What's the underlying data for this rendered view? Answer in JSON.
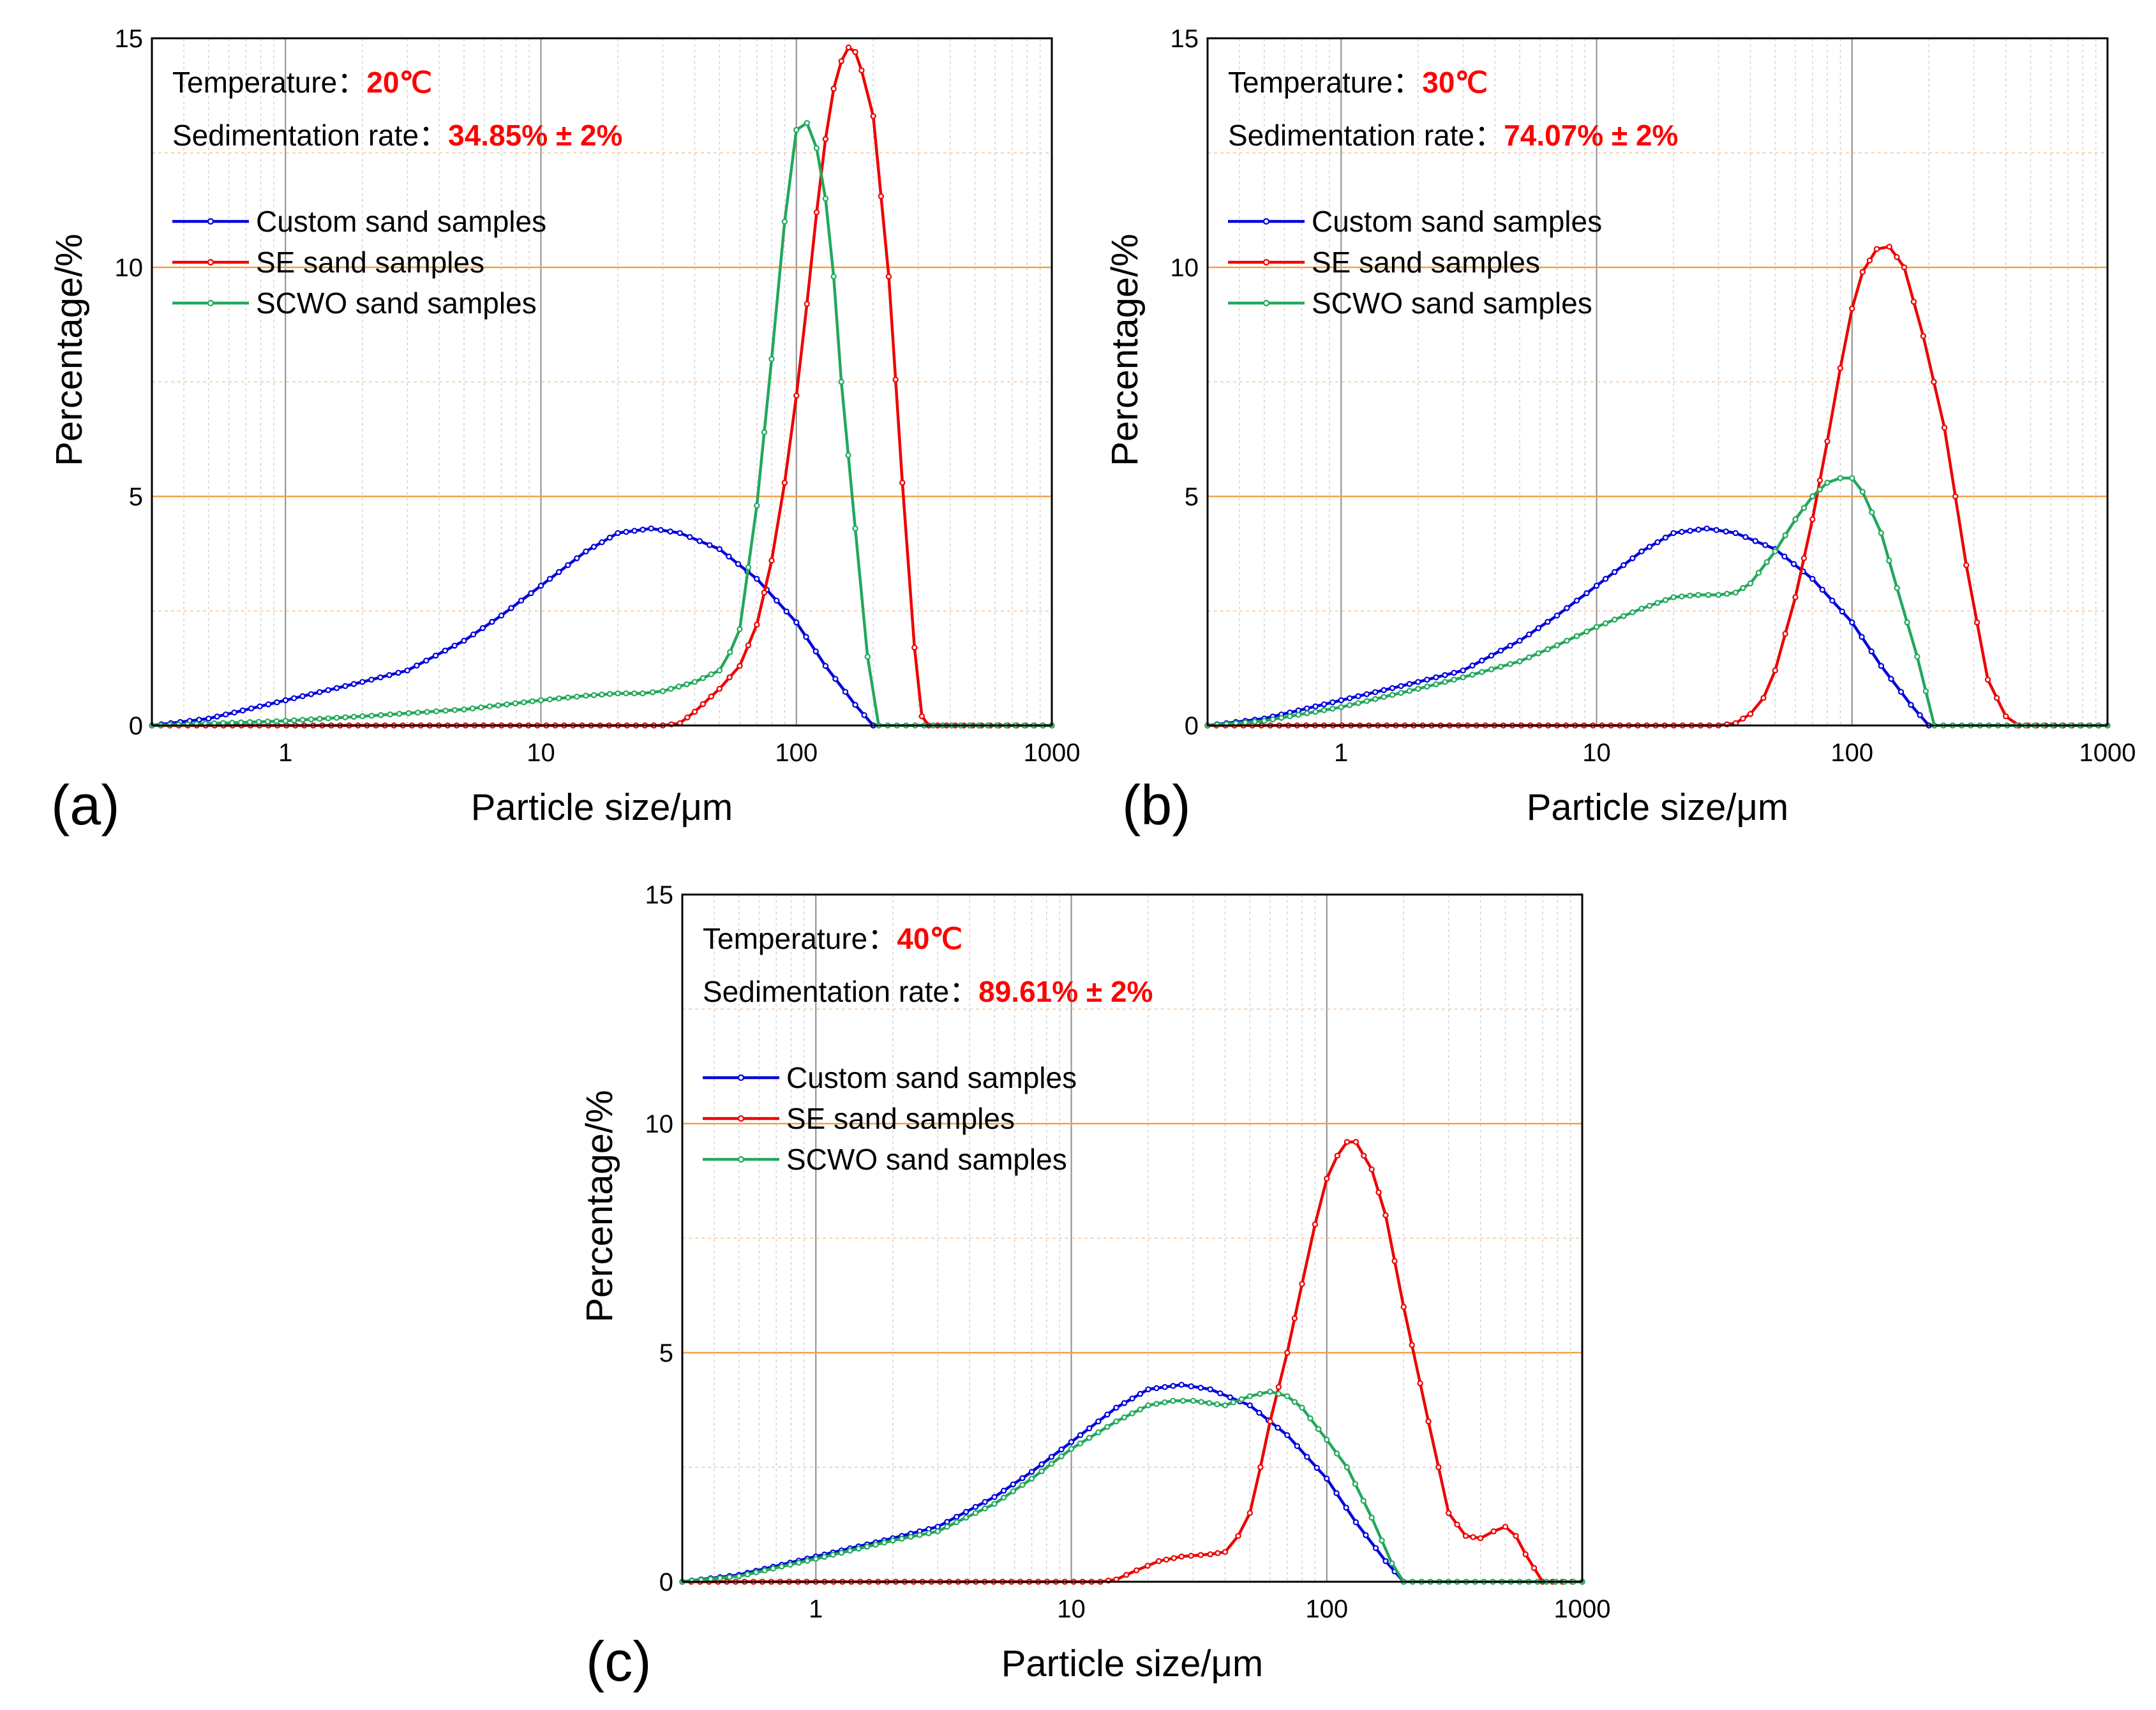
{
  "chart_data": [
    {
      "type": "line",
      "panel_label": "(a)",
      "xscale": "log",
      "xlim": [
        0.3,
        1000
      ],
      "ylim": [
        0,
        15
      ],
      "xlabel": "Particle size/μm",
      "ylabel": "Percentage/%",
      "x_ticks": [
        "1",
        "10",
        "100",
        "1000"
      ],
      "y_ticks": [
        "0",
        "5",
        "10",
        "15"
      ],
      "legend_position": "top-left",
      "annotations": [
        {
          "label": "Temperature：",
          "value": "20℃"
        },
        {
          "label": "Sedimentation rate：",
          "value": "34.85% ± 2%"
        }
      ],
      "series": [
        {
          "name": "Custom sand samples",
          "color": "#0000dd",
          "x": [
            0.3,
            0.5,
            1,
            2,
            3,
            5,
            7,
            10,
            15,
            20,
            27,
            35,
            50,
            70,
            100,
            130,
            170,
            200
          ],
          "y": [
            0,
            0.15,
            0.55,
            0.95,
            1.2,
            1.85,
            2.4,
            3.05,
            3.8,
            4.2,
            4.3,
            4.2,
            3.85,
            3.2,
            2.25,
            1.3,
            0.45,
            0
          ]
        },
        {
          "name": "SE sand samples",
          "color": "#ee0000",
          "x": [
            0.3,
            30,
            35,
            40,
            50,
            60,
            70,
            80,
            90,
            100,
            110,
            120,
            130,
            140,
            150,
            160,
            170,
            180,
            200,
            230,
            260,
            290,
            310,
            330,
            1000
          ],
          "y": [
            0,
            0,
            0.05,
            0.3,
            0.8,
            1.3,
            2.2,
            3.6,
            5.3,
            7.2,
            9.2,
            11.2,
            12.8,
            13.9,
            14.5,
            14.8,
            14.7,
            14.3,
            13.3,
            9.8,
            5.3,
            1.7,
            0.2,
            0,
            0
          ]
        },
        {
          "name": "SCWO sand samples",
          "color": "#22a85c",
          "x": [
            0.3,
            1,
            2,
            5,
            10,
            15,
            20,
            25,
            30,
            40,
            50,
            55,
            60,
            70,
            80,
            90,
            100,
            110,
            120,
            130,
            140,
            150,
            170,
            190,
            210,
            1000
          ],
          "y": [
            0,
            0.1,
            0.2,
            0.35,
            0.55,
            0.65,
            0.7,
            0.7,
            0.75,
            0.95,
            1.2,
            1.6,
            2.1,
            4.8,
            8.0,
            11.0,
            13.0,
            13.15,
            12.6,
            11.5,
            9.8,
            7.5,
            4.3,
            1.5,
            0,
            0
          ]
        }
      ]
    },
    {
      "type": "line",
      "panel_label": "(b)",
      "xscale": "log",
      "xlim": [
        0.3,
        1000
      ],
      "ylim": [
        0,
        15
      ],
      "xlabel": "Particle size/μm",
      "ylabel": "Percentage/%",
      "x_ticks": [
        "1",
        "10",
        "100",
        "1000"
      ],
      "y_ticks": [
        "0",
        "5",
        "10",
        "15"
      ],
      "legend_position": "top-left",
      "annotations": [
        {
          "label": "Temperature：",
          "value": "30℃"
        },
        {
          "label": "Sedimentation rate：",
          "value": "74.07% ± 2%"
        }
      ],
      "series": [
        {
          "name": "Custom sand samples",
          "color": "#0000dd",
          "x": [
            0.3,
            0.5,
            1,
            2,
            3,
            5,
            7,
            10,
            15,
            20,
            27,
            35,
            50,
            70,
            100,
            130,
            170,
            200
          ],
          "y": [
            0,
            0.15,
            0.55,
            0.95,
            1.2,
            1.85,
            2.4,
            3.05,
            3.8,
            4.2,
            4.3,
            4.2,
            3.85,
            3.2,
            2.25,
            1.3,
            0.45,
            0
          ]
        },
        {
          "name": "SE sand samples",
          "color": "#ee0000",
          "x": [
            0.3,
            30,
            35,
            40,
            45,
            50,
            60,
            70,
            80,
            90,
            100,
            110,
            125,
            140,
            160,
            190,
            230,
            280,
            340,
            400,
            450,
            1000
          ],
          "y": [
            0,
            0,
            0.05,
            0.25,
            0.6,
            1.2,
            2.8,
            4.5,
            6.2,
            7.8,
            9.1,
            9.9,
            10.4,
            10.45,
            10.0,
            8.5,
            6.5,
            3.5,
            1.0,
            0.2,
            0,
            0
          ]
        },
        {
          "name": "SCWO sand samples",
          "color": "#22a85c",
          "x": [
            0.3,
            0.5,
            1,
            2,
            3,
            5,
            7,
            10,
            15,
            20,
            25,
            30,
            35,
            40,
            50,
            60,
            70,
            80,
            90,
            100,
            110,
            130,
            150,
            180,
            210,
            1000
          ],
          "y": [
            0,
            0.1,
            0.4,
            0.8,
            1.05,
            1.4,
            1.75,
            2.15,
            2.55,
            2.8,
            2.85,
            2.85,
            2.9,
            3.1,
            3.8,
            4.5,
            5.0,
            5.3,
            5.4,
            5.4,
            5.1,
            4.2,
            3.0,
            1.5,
            0,
            0
          ]
        }
      ]
    },
    {
      "type": "line",
      "panel_label": "(c)",
      "xscale": "log",
      "xlim": [
        0.3,
        1000
      ],
      "ylim": [
        0,
        15
      ],
      "xlabel": "Particle size/μm",
      "ylabel": "Percentage/%",
      "x_ticks": [
        "1",
        "10",
        "100",
        "1000"
      ],
      "y_ticks": [
        "0",
        "5",
        "10",
        "15"
      ],
      "legend_position": "top-left",
      "annotations": [
        {
          "label": "Temperature：",
          "value": "40℃"
        },
        {
          "label": "Sedimentation rate：",
          "value": "89.61% ± 2%"
        }
      ],
      "series": [
        {
          "name": "Custom sand samples",
          "color": "#0000dd",
          "x": [
            0.3,
            0.5,
            1,
            2,
            3,
            5,
            7,
            10,
            15,
            20,
            27,
            35,
            50,
            70,
            100,
            130,
            170,
            200
          ],
          "y": [
            0,
            0.15,
            0.55,
            0.95,
            1.2,
            1.85,
            2.4,
            3.05,
            3.8,
            4.2,
            4.3,
            4.2,
            3.85,
            3.2,
            2.25,
            1.3,
            0.45,
            0
          ]
        },
        {
          "name": "SE sand samples",
          "color": "#ee0000",
          "x": [
            0.3,
            13,
            15,
            18,
            22,
            27,
            35,
            40,
            45,
            50,
            55,
            60,
            70,
            80,
            90,
            100,
            110,
            120,
            130,
            150,
            170,
            200,
            250,
            300,
            350,
            400,
            450,
            500,
            550,
            600,
            700,
            1000
          ],
          "y": [
            0,
            0,
            0.05,
            0.25,
            0.45,
            0.55,
            0.6,
            0.65,
            1.0,
            1.5,
            2.5,
            3.5,
            5.0,
            6.5,
            7.8,
            8.8,
            9.3,
            9.6,
            9.6,
            9.0,
            8.0,
            6.0,
            3.5,
            1.5,
            1.0,
            0.95,
            1.1,
            1.2,
            1.0,
            0.6,
            0,
            0
          ]
        },
        {
          "name": "SCWO sand samples",
          "color": "#22a85c",
          "x": [
            0.3,
            0.5,
            1,
            2,
            3,
            5,
            7,
            10,
            15,
            20,
            25,
            30,
            40,
            50,
            60,
            70,
            80,
            100,
            120,
            150,
            180,
            200,
            1000
          ],
          "y": [
            0,
            0.12,
            0.5,
            0.9,
            1.1,
            1.7,
            2.25,
            2.9,
            3.5,
            3.85,
            3.95,
            3.95,
            3.85,
            4.05,
            4.15,
            4.05,
            3.8,
            3.1,
            2.5,
            1.4,
            0.4,
            0,
            0
          ]
        }
      ]
    }
  ]
}
